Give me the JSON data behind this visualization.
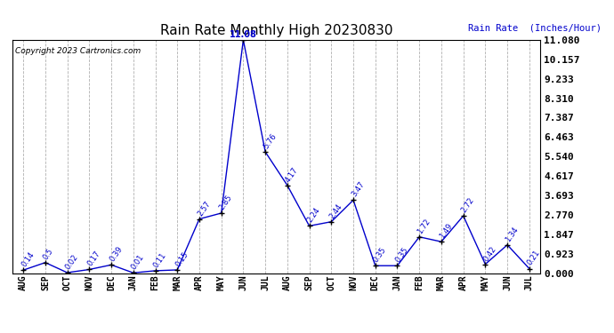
{
  "title": "Rain Rate Monthly High 20230830",
  "ylabel_right": "Rain Rate  (Inches/Hour)",
  "copyright": "Copyright 2023 Cartronics.com",
  "months": [
    "AUG",
    "SEP",
    "OCT",
    "NOV",
    "DEC",
    "JAN",
    "FEB",
    "MAR",
    "APR",
    "MAY",
    "JUN",
    "JUL",
    "AUG",
    "SEP",
    "OCT",
    "NOV",
    "DEC",
    "JAN",
    "FEB",
    "MAR",
    "APR",
    "MAY",
    "JUN",
    "JUL"
  ],
  "values": [
    0.14,
    0.5,
    0.02,
    0.17,
    0.39,
    0.01,
    0.11,
    0.15,
    2.57,
    2.85,
    11.08,
    5.76,
    4.17,
    2.24,
    2.44,
    3.47,
    0.35,
    0.35,
    1.72,
    1.49,
    2.72,
    0.42,
    1.34,
    0.21
  ],
  "ylim_max": 11.08,
  "yticks": [
    0.0,
    0.923,
    1.847,
    2.77,
    3.693,
    4.617,
    5.54,
    6.463,
    7.387,
    8.31,
    9.233,
    10.157,
    11.08
  ],
  "line_color": "#0000cc",
  "marker_color": "#000000",
  "label_color": "#0000cc",
  "title_color": "#000000",
  "bg_color": "#ffffff",
  "grid_color": "#b0b0b0",
  "copyright_color": "#000000",
  "right_label_color": "#0000cc",
  "right_tick_color": "#000000"
}
